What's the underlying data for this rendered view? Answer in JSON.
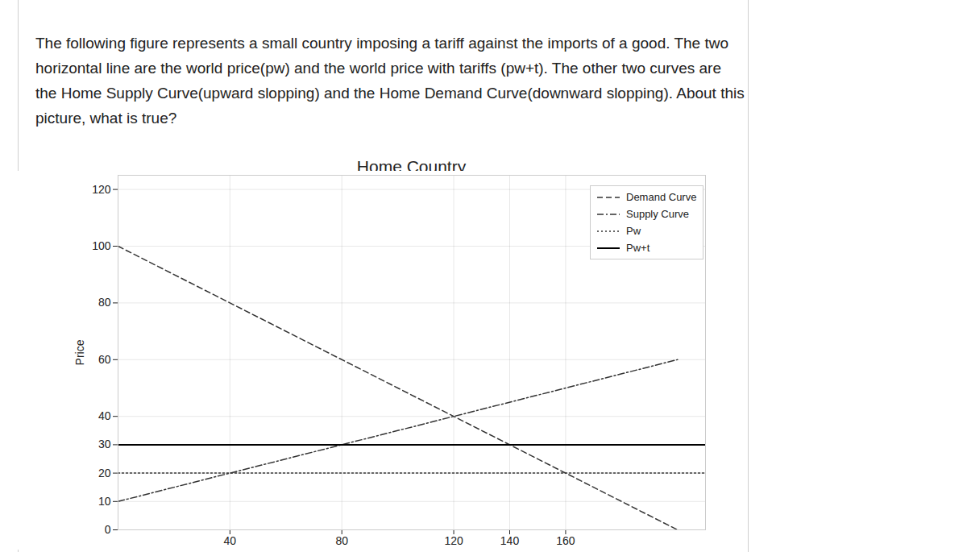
{
  "question": "The following figure represents a small country imposing a tariff against the imports of a good. The two horizontal line are the world price(pw) and the world price with tariffs (pw+t). The other two curves are the Home Supply Curve(upward slopping) and the Home Demand Curve(downward slopping). About this picture, what is true?",
  "chart_data": {
    "type": "line",
    "title": "Home Country",
    "y_label": "Price",
    "xlim": [
      0,
      210
    ],
    "ylim": [
      0,
      125
    ],
    "xticks": [
      40,
      80,
      120,
      140,
      160
    ],
    "yticks": [
      0,
      10,
      20,
      30,
      40,
      60,
      80,
      100,
      120
    ],
    "grid": true,
    "legend": "top-right",
    "series": [
      {
        "name": "Demand Curve",
        "color": "#333333",
        "line_style": "dashed",
        "x": [
          0,
          200
        ],
        "values": [
          100,
          0
        ]
      },
      {
        "name": "Supply Curve",
        "color": "#333333",
        "line_style": "dashdot",
        "x": [
          0,
          200
        ],
        "values": [
          10,
          60
        ]
      },
      {
        "name": "Pw",
        "color": "#333333",
        "line_style": "dotted",
        "x": [
          0,
          210
        ],
        "values": [
          20,
          20
        ]
      },
      {
        "name": "Pw+t",
        "color": "#000000",
        "line_style": "solid",
        "x": [
          0,
          210
        ],
        "values": [
          30,
          30
        ]
      }
    ]
  }
}
